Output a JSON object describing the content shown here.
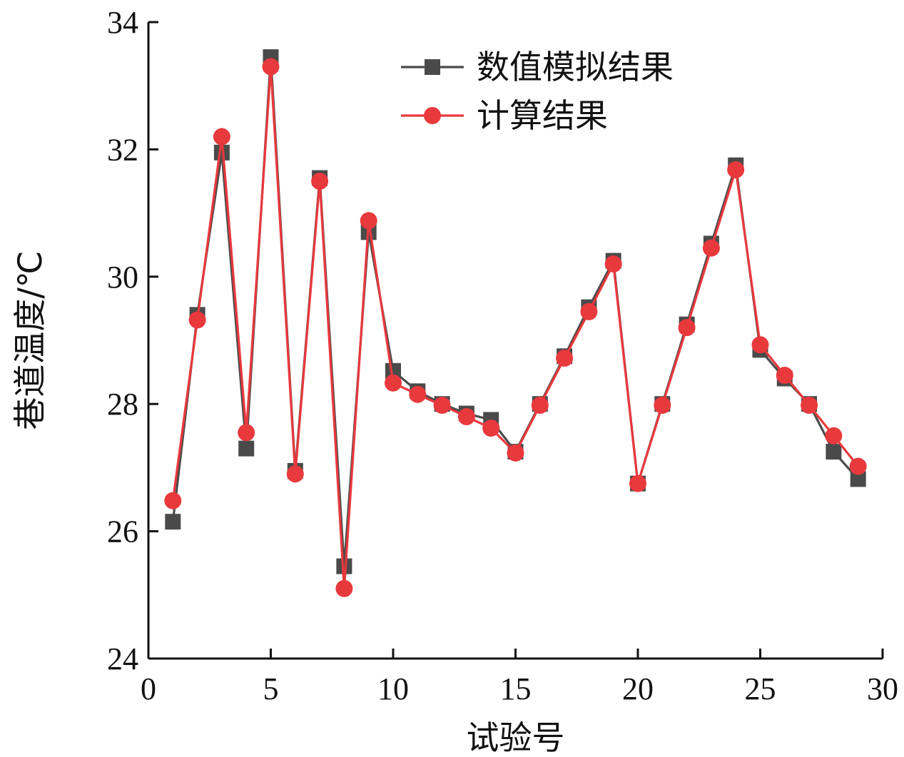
{
  "chart_data": {
    "type": "line",
    "title": "",
    "xlabel": "试验号",
    "ylabel": "巷道温度/℃",
    "xlim": [
      0,
      30
    ],
    "ylim": [
      24,
      34
    ],
    "xticks": [
      0,
      5,
      10,
      15,
      20,
      25,
      30
    ],
    "yticks": [
      24,
      26,
      28,
      30,
      32,
      34
    ],
    "grid": false,
    "legend_position": "top-right",
    "x": [
      1,
      2,
      3,
      4,
      5,
      6,
      7,
      8,
      9,
      10,
      11,
      12,
      13,
      14,
      15,
      16,
      17,
      18,
      19,
      20,
      21,
      22,
      23,
      24,
      25,
      26,
      27,
      28,
      29
    ],
    "series": [
      {
        "name": "数值模拟结果",
        "color": "#4a4a4a",
        "marker": "square",
        "values": [
          26.15,
          29.4,
          31.95,
          27.3,
          33.45,
          26.95,
          31.55,
          25.45,
          30.7,
          28.52,
          28.2,
          28.0,
          27.85,
          27.75,
          27.25,
          28.0,
          28.75,
          29.52,
          30.25,
          26.75,
          28.0,
          29.25,
          30.52,
          31.75,
          28.85,
          28.4,
          28.0,
          27.25,
          26.82
        ]
      },
      {
        "name": "计算结果",
        "color": "#e8393d",
        "marker": "circle",
        "values": [
          26.48,
          29.32,
          32.2,
          27.55,
          33.3,
          26.9,
          31.5,
          25.1,
          30.88,
          28.33,
          28.15,
          27.98,
          27.8,
          27.62,
          27.23,
          27.98,
          28.72,
          29.45,
          30.2,
          26.75,
          27.98,
          29.2,
          30.45,
          31.68,
          28.93,
          28.45,
          27.98,
          27.5,
          27.02
        ]
      }
    ]
  }
}
